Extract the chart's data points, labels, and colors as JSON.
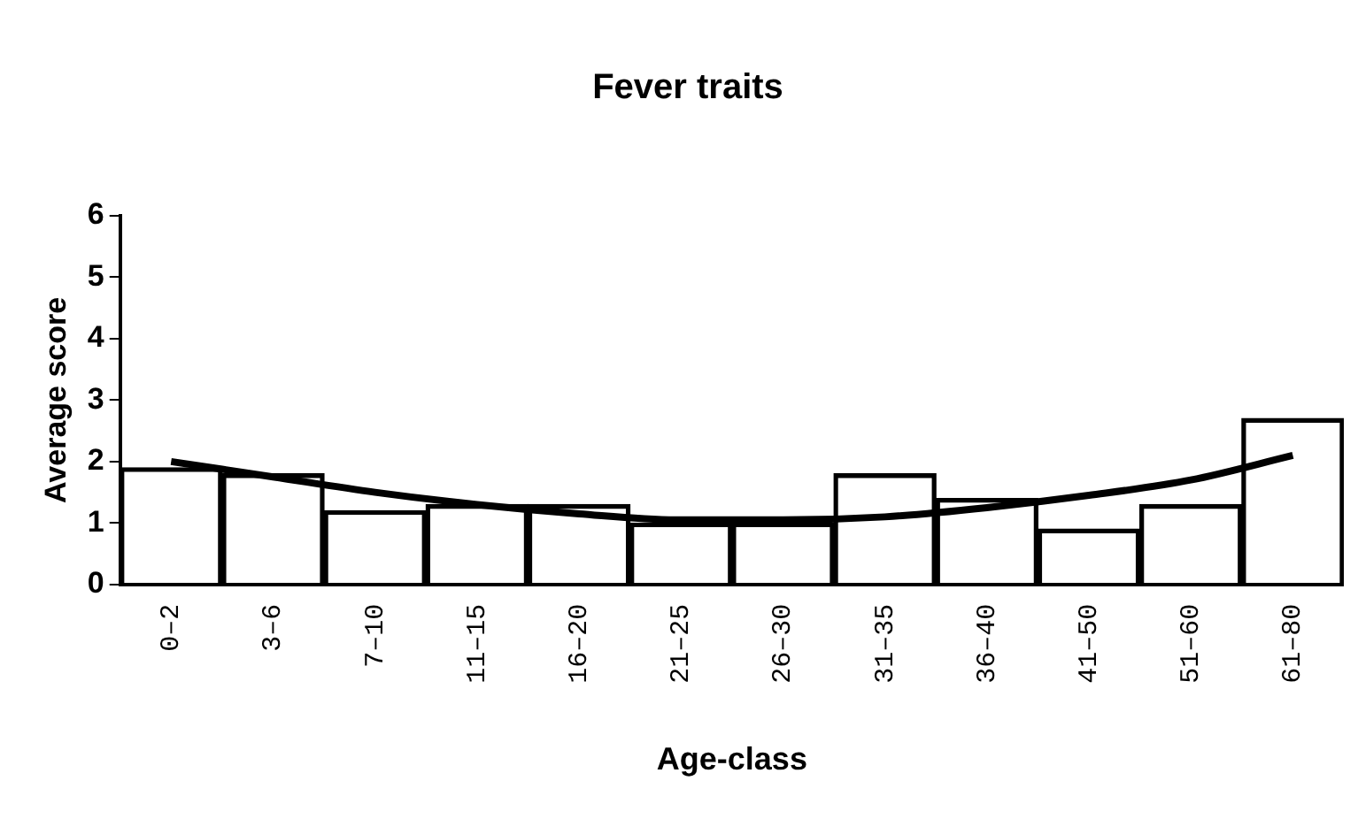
{
  "chart_data": {
    "type": "bar",
    "title": "Fever traits",
    "xlabel": "Age-class",
    "ylabel": "Average score",
    "categories": [
      "0–2",
      "3–6",
      "7–10",
      "11–15",
      "16–20",
      "21–25",
      "26–30",
      "31–35",
      "36–40",
      "41–50",
      "51–60",
      "61–80"
    ],
    "series": [
      {
        "color": "#000000",
        "values": [
          1.9,
          1.8,
          1.2,
          1.3,
          1.3,
          1.0,
          1.0,
          1.8,
          1.4,
          0.9,
          1.3,
          2.7
        ]
      },
      {
        "type": "line",
        "color": "#000000",
        "values": [
          2.0,
          1.75,
          1.5,
          1.3,
          1.15,
          1.05,
          1.05,
          1.1,
          1.25,
          1.45,
          1.7,
          2.1
        ]
      }
    ],
    "ylim": [
      0,
      6
    ],
    "yticks": [
      0,
      1,
      2,
      3,
      4,
      5,
      6
    ],
    "grid": false
  }
}
